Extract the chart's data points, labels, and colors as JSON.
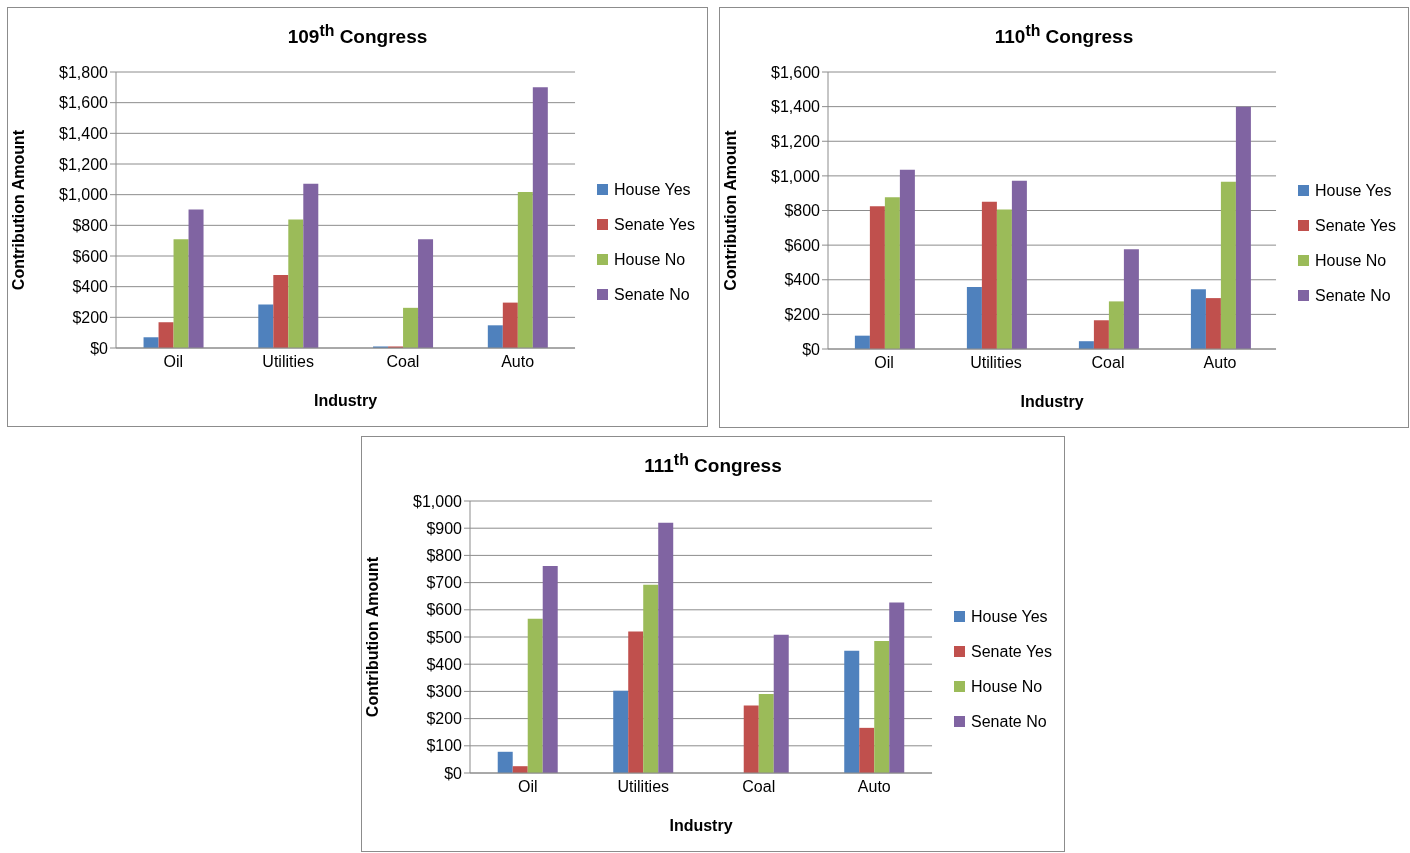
{
  "chart_data": [
    {
      "type": "bar",
      "title": "109$^{th}$ Congress",
      "xlabel": "Industry",
      "ylabel": "Contribution Amount",
      "categories": [
        "Oil",
        "Utilities",
        "Coal",
        "Auto"
      ],
      "series": [
        {
          "name": "House Yes",
          "color": "#4f81bd",
          "values": [
            70,
            284,
            10,
            148
          ]
        },
        {
          "name": "Senate Yes",
          "color": "#c0504d",
          "values": [
            168,
            476,
            10,
            296
          ]
        },
        {
          "name": "House No",
          "color": "#9bbb59",
          "values": [
            709,
            838,
            262,
            1018
          ]
        },
        {
          "name": "Senate No",
          "color": "#8064a2",
          "values": [
            904,
            1071,
            709,
            1700
          ]
        }
      ],
      "ylim": [
        0,
        1800
      ],
      "yticks": [
        {
          "value": 0,
          "label": "$0"
        },
        {
          "value": 200,
          "label": "$200"
        },
        {
          "value": 400,
          "label": "$400"
        },
        {
          "value": 600,
          "label": "$600"
        },
        {
          "value": 800,
          "label": "$800"
        },
        {
          "value": 1000,
          "label": "$1,000"
        },
        {
          "value": 1200,
          "label": "$1,200"
        },
        {
          "value": 1400,
          "label": "$1,400"
        },
        {
          "value": 1600,
          "label": "$1,600"
        },
        {
          "value": 1800,
          "label": "$1,800"
        }
      ],
      "grid": "y",
      "legend": "right"
    },
    {
      "type": "bar",
      "title": "110$^{th}$ Congress",
      "xlabel": "Industry",
      "ylabel": "Contribution Amount",
      "categories": [
        "Oil",
        "Utilities",
        "Coal",
        "Auto"
      ],
      "series": [
        {
          "name": "House Yes",
          "color": "#4f81bd",
          "values": [
            77,
            358,
            45,
            345
          ]
        },
        {
          "name": "Senate Yes",
          "color": "#c0504d",
          "values": [
            825,
            851,
            166,
            294
          ]
        },
        {
          "name": "House No",
          "color": "#9bbb59",
          "values": [
            876,
            806,
            275,
            966
          ]
        },
        {
          "name": "Senate No",
          "color": "#8064a2",
          "values": [
            1036,
            972,
            576,
            1400
          ]
        }
      ],
      "ylim": [
        0,
        1600
      ],
      "yticks": [
        {
          "value": 0,
          "label": "$0"
        },
        {
          "value": 200,
          "label": "$200"
        },
        {
          "value": 400,
          "label": "$400"
        },
        {
          "value": 600,
          "label": "$600"
        },
        {
          "value": 800,
          "label": "$800"
        },
        {
          "value": 1000,
          "label": "$1,000"
        },
        {
          "value": 1200,
          "label": "$1,200"
        },
        {
          "value": 1400,
          "label": "$1,400"
        },
        {
          "value": 1600,
          "label": "$1,600"
        }
      ],
      "grid": "y",
      "legend": "right"
    },
    {
      "type": "bar",
      "title": "111$^{th}$ Congress",
      "xlabel": "Industry",
      "ylabel": "Contribution Amount",
      "categories": [
        "Oil",
        "Utilities",
        "Coal",
        "Auto"
      ],
      "series": [
        {
          "name": "House Yes",
          "color": "#4f81bd",
          "values": [
            78,
            302,
            0,
            449
          ]
        },
        {
          "name": "Senate Yes",
          "color": "#c0504d",
          "values": [
            25,
            520,
            248,
            166
          ]
        },
        {
          "name": "House No",
          "color": "#9bbb59",
          "values": [
            567,
            692,
            290,
            485
          ]
        },
        {
          "name": "Senate No",
          "color": "#8064a2",
          "values": [
            761,
            920,
            508,
            627
          ]
        }
      ],
      "ylim": [
        0,
        1000
      ],
      "yticks": [
        {
          "value": 0,
          "label": "$0"
        },
        {
          "value": 100,
          "label": "$100"
        },
        {
          "value": 200,
          "label": "$200"
        },
        {
          "value": 300,
          "label": "$300"
        },
        {
          "value": 400,
          "label": "$400"
        },
        {
          "value": 500,
          "label": "$500"
        },
        {
          "value": 600,
          "label": "$600"
        },
        {
          "value": 700,
          "label": "$700"
        },
        {
          "value": 800,
          "label": "$800"
        },
        {
          "value": 900,
          "label": "$900"
        },
        {
          "value": 1000,
          "label": "$1,000"
        }
      ],
      "grid": "y",
      "legend": "right"
    }
  ]
}
